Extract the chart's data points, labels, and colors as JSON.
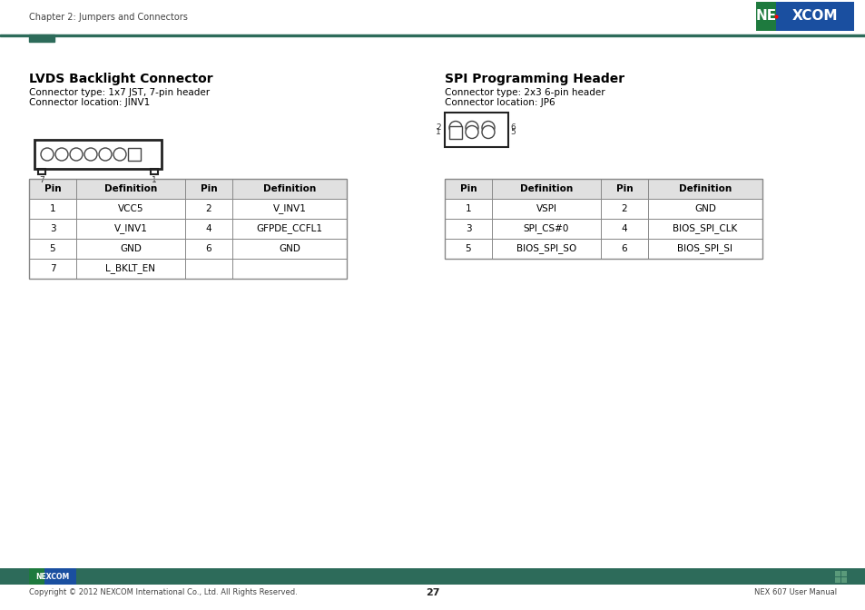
{
  "page_header": "Chapter 2: Jumpers and Connectors",
  "page_number": "27",
  "footer_left": "Copyright © 2012 NEXCOM International Co., Ltd. All Rights Reserved.",
  "footer_right": "NEX 607 User Manual",
  "header_line_color": "#2d6b5a",
  "header_block_color": "#2d6b5a",
  "nexcom_green": "#1e7a3e",
  "nexcom_blue": "#1a4fa0",
  "footer_bar_color": "#2d6b5a",
  "lvds_title": "LVDS Backlight Connector",
  "lvds_sub1": "Connector type: 1x7 JST, 7-pin header",
  "lvds_sub2": "Connector location: JINV1",
  "lvds_table_headers": [
    "Pin",
    "Definition",
    "Pin",
    "Definition"
  ],
  "lvds_table_rows": [
    [
      "1",
      "VCC5",
      "2",
      "V_INV1"
    ],
    [
      "3",
      "V_INV1",
      "4",
      "GFPDE_CCFL1"
    ],
    [
      "5",
      "GND",
      "6",
      "GND"
    ],
    [
      "7",
      "L_BKLT_EN",
      "",
      ""
    ]
  ],
  "spi_title": "SPI Programming Header",
  "spi_sub1": "Connector type: 2x3 6-pin header",
  "spi_sub2": "Connector location: JP6",
  "spi_table_headers": [
    "Pin",
    "Definition",
    "Pin",
    "Definition"
  ],
  "spi_table_rows": [
    [
      "1",
      "VSPI",
      "2",
      "GND"
    ],
    [
      "3",
      "SPI_CS#0",
      "4",
      "BIOS_SPI_CLK"
    ],
    [
      "5",
      "BIOS_SPI_SO",
      "6",
      "BIOS_SPI_SI"
    ]
  ],
  "bg_color": "#ffffff",
  "text_color": "#000000",
  "table_border_color": "#888888",
  "table_header_bg": "#e0e0e0",
  "title_fontsize": 10,
  "subtitle_fontsize": 7.5,
  "table_fontsize": 7.5,
  "header_fontsize": 7
}
